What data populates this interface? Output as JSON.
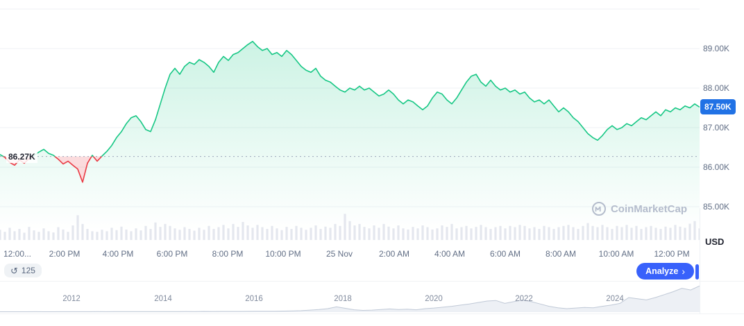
{
  "watermark": {
    "text": "CoinMarketCap"
  },
  "footer": {
    "history_count": "125",
    "history_icon_glyph": "↺",
    "analyze_label": "Analyze",
    "chevron_glyph": "›"
  },
  "minimap": {
    "years": [
      "2012",
      "2014",
      "2016",
      "2018",
      "2020",
      "2022",
      "2024"
    ],
    "values_rel": [
      0.012,
      0.012,
      0.013,
      0.012,
      0.014,
      0.013,
      0.012,
      0.014,
      0.015,
      0.014,
      0.015,
      0.016,
      0.015,
      0.017,
      0.016,
      0.018,
      0.017,
      0.018,
      0.02,
      0.019,
      0.02,
      0.022,
      0.02,
      0.023,
      0.022,
      0.024,
      0.025,
      0.024,
      0.026,
      0.028,
      0.03,
      0.032,
      0.035,
      0.04,
      0.05,
      0.07,
      0.09,
      0.12,
      0.18,
      0.13,
      0.08,
      0.06,
      0.07,
      0.09,
      0.11,
      0.09,
      0.1,
      0.08,
      0.12,
      0.14,
      0.17,
      0.2,
      0.24,
      0.28,
      0.33,
      0.38,
      0.4,
      0.3,
      0.36,
      0.42,
      0.36,
      0.28,
      0.2,
      0.15,
      0.12,
      0.14,
      0.16,
      0.15,
      0.2,
      0.24,
      0.3,
      0.5,
      0.46,
      0.42,
      0.5,
      0.6,
      0.7,
      0.82,
      0.76,
      0.9
    ]
  },
  "chart_data": {
    "type": "area",
    "title": "",
    "currency": "USD",
    "current_price_label": "87.50K",
    "baseline_label": "86.27K",
    "baseline_value_k": 86.27,
    "ylim_k": [
      84.6,
      89.6
    ],
    "grid": true,
    "legend": "none",
    "y_ticks": [
      {
        "label": "89.00K",
        "value_k": 89
      },
      {
        "label": "88.00K",
        "value_k": 88
      },
      {
        "label": "87.00K",
        "value_k": 87
      },
      {
        "label": "86.00K",
        "value_k": 86
      },
      {
        "label": "85.00K",
        "value_k": 85
      }
    ],
    "gridline_values_k": [
      90,
      89,
      88,
      87,
      86,
      85
    ],
    "x_ticks": [
      "12:00...",
      "2:00 PM",
      "4:00 PM",
      "6:00 PM",
      "8:00 PM",
      "10:00 PM",
      "25 Nov",
      "2:00 AM",
      "4:00 AM",
      "6:00 AM",
      "8:00 AM",
      "10:00 AM",
      "12:00 PM"
    ],
    "series": [
      {
        "name": "price_k_usd",
        "values": [
          86.32,
          86.25,
          86.12,
          86.05,
          86.18,
          86.1,
          86.22,
          86.3,
          86.38,
          86.45,
          86.35,
          86.3,
          86.2,
          86.08,
          86.15,
          86.05,
          85.95,
          85.62,
          86.1,
          86.3,
          86.15,
          86.28,
          86.4,
          86.55,
          86.75,
          86.9,
          87.1,
          87.25,
          87.3,
          87.15,
          86.95,
          86.9,
          87.2,
          87.6,
          88.0,
          88.35,
          88.5,
          88.35,
          88.55,
          88.65,
          88.6,
          88.72,
          88.65,
          88.55,
          88.4,
          88.65,
          88.8,
          88.7,
          88.85,
          88.9,
          89.0,
          89.1,
          89.18,
          89.05,
          88.95,
          89.0,
          88.85,
          88.9,
          88.8,
          88.95,
          88.85,
          88.7,
          88.55,
          88.45,
          88.4,
          88.5,
          88.3,
          88.2,
          88.15,
          88.05,
          87.95,
          87.9,
          88.0,
          87.95,
          88.05,
          87.95,
          88.0,
          87.9,
          87.8,
          87.85,
          87.95,
          87.85,
          87.7,
          87.6,
          87.7,
          87.65,
          87.55,
          87.45,
          87.55,
          87.75,
          87.9,
          87.85,
          87.7,
          87.6,
          87.75,
          87.95,
          88.15,
          88.3,
          88.35,
          88.15,
          88.05,
          88.2,
          88.05,
          87.95,
          88.0,
          87.9,
          87.95,
          87.85,
          87.9,
          87.75,
          87.65,
          87.7,
          87.6,
          87.7,
          87.55,
          87.4,
          87.5,
          87.4,
          87.25,
          87.15,
          87.0,
          86.85,
          86.75,
          86.68,
          86.8,
          86.95,
          87.05,
          86.95,
          87.0,
          87.1,
          87.05,
          87.15,
          87.25,
          87.2,
          87.3,
          87.4,
          87.3,
          87.45,
          87.4,
          87.5,
          87.45,
          87.55,
          87.5,
          87.6,
          87.52
        ]
      }
    ],
    "volume_rel": [
      0.35,
      0.28,
      0.42,
      0.3,
      0.38,
      0.25,
      0.45,
      0.33,
      0.28,
      0.4,
      0.3,
      0.26,
      0.44,
      0.36,
      0.28,
      0.5,
      0.85,
      0.55,
      0.38,
      0.3,
      0.28,
      0.35,
      0.3,
      0.42,
      0.34,
      0.46,
      0.36,
      0.3,
      0.4,
      0.33,
      0.48,
      0.38,
      0.6,
      0.45,
      0.55,
      0.48,
      0.4,
      0.35,
      0.44,
      0.38,
      0.32,
      0.42,
      0.35,
      0.48,
      0.38,
      0.44,
      0.52,
      0.4,
      0.55,
      0.45,
      0.62,
      0.5,
      0.42,
      0.52,
      0.44,
      0.38,
      0.48,
      0.4,
      0.34,
      0.45,
      0.38,
      0.48,
      0.42,
      0.35,
      0.42,
      0.5,
      0.38,
      0.46,
      0.42,
      0.55,
      0.48,
      0.9,
      0.65,
      0.5,
      0.55,
      0.45,
      0.4,
      0.5,
      0.42,
      0.55,
      0.46,
      0.4,
      0.5,
      0.4,
      0.36,
      0.45,
      0.4,
      0.5,
      0.44,
      0.36,
      0.4,
      0.5,
      0.45,
      0.55,
      0.4,
      0.44,
      0.48,
      0.4,
      0.45,
      0.52,
      0.44,
      0.38,
      0.44,
      0.48,
      0.4,
      0.48,
      0.44,
      0.52,
      0.48,
      0.4,
      0.44,
      0.38,
      0.48,
      0.44,
      0.38,
      0.44,
      0.48,
      0.52,
      0.44,
      0.38,
      0.48,
      0.58,
      0.48,
      0.44,
      0.52,
      0.44,
      0.38,
      0.48,
      0.44,
      0.52,
      0.42,
      0.48,
      0.38,
      0.44,
      0.48,
      0.42,
      0.38,
      0.46,
      0.42,
      0.52,
      0.46,
      0.42,
      0.56,
      0.65,
      0.4
    ],
    "colors": {
      "up": "#16c784",
      "down": "#ea3943",
      "badge": "#2172e5",
      "accent": "#3861fb",
      "grid": "#eff2f5",
      "axis_text": "#616e85",
      "volume": "#e4e7ee",
      "baseline": "#9aa3b8"
    }
  }
}
